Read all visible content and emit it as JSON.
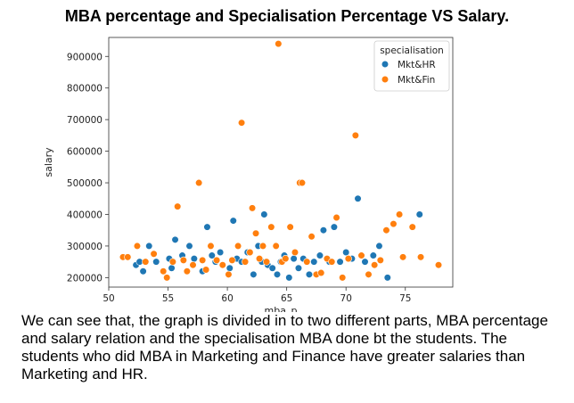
{
  "title": "MBA percentage and Specialisation Percentage VS Salary.",
  "caption": "We can see that, the graph is divided in to two different parts, MBA percentage and salary relation and the specialisation MBA done bt the students. The students who did MBA in Marketing and Finance have greater salaries than Marketing and HR.",
  "chart_data": {
    "type": "scatter",
    "xlabel": "mba_p",
    "ylabel": "salary",
    "xlim": [
      50,
      79
    ],
    "ylim": [
      170000,
      960000
    ],
    "xticks": [
      50,
      55,
      60,
      65,
      70,
      75
    ],
    "yticks": [
      200000,
      300000,
      400000,
      500000,
      600000,
      700000,
      800000,
      900000
    ],
    "grid": false,
    "legend": {
      "title": "specialisation",
      "placement": "top-right"
    },
    "series": [
      {
        "name": "Mkt&HR",
        "color": "#1f77b4",
        "points": [
          [
            52.3,
            240000
          ],
          [
            52.6,
            250000
          ],
          [
            52.9,
            220000
          ],
          [
            53.4,
            300000
          ],
          [
            54.0,
            250000
          ],
          [
            55.1,
            260000
          ],
          [
            55.3,
            230000
          ],
          [
            55.6,
            320000
          ],
          [
            56.2,
            270000
          ],
          [
            56.8,
            300000
          ],
          [
            57.2,
            260000
          ],
          [
            57.9,
            220000
          ],
          [
            58.3,
            360000
          ],
          [
            58.7,
            270000
          ],
          [
            59.0,
            250000
          ],
          [
            59.4,
            280000
          ],
          [
            60.2,
            230000
          ],
          [
            60.5,
            380000
          ],
          [
            60.8,
            260000
          ],
          [
            61.2,
            250000
          ],
          [
            61.7,
            280000
          ],
          [
            62.2,
            210000
          ],
          [
            62.6,
            300000
          ],
          [
            62.9,
            250000
          ],
          [
            63.1,
            400000
          ],
          [
            63.4,
            240000
          ],
          [
            63.8,
            230000
          ],
          [
            64.2,
            210000
          ],
          [
            64.5,
            250000
          ],
          [
            64.8,
            270000
          ],
          [
            65.2,
            200000
          ],
          [
            65.6,
            260000
          ],
          [
            66.0,
            230000
          ],
          [
            66.4,
            260000
          ],
          [
            66.9,
            210000
          ],
          [
            67.3,
            250000
          ],
          [
            67.8,
            270000
          ],
          [
            68.1,
            350000
          ],
          [
            68.6,
            250000
          ],
          [
            69.0,
            360000
          ],
          [
            69.5,
            250000
          ],
          [
            70.0,
            280000
          ],
          [
            70.5,
            260000
          ],
          [
            71.0,
            450000
          ],
          [
            71.6,
            250000
          ],
          [
            72.3,
            270000
          ],
          [
            72.8,
            300000
          ],
          [
            73.5,
            200000
          ],
          [
            76.2,
            400000
          ]
        ]
      },
      {
        "name": "Mkt&Fin",
        "color": "#ff7f0e",
        "points": [
          [
            51.2,
            265000
          ],
          [
            51.6,
            265000
          ],
          [
            52.4,
            300000
          ],
          [
            53.1,
            250000
          ],
          [
            53.8,
            275000
          ],
          [
            54.6,
            220000
          ],
          [
            54.9,
            200000
          ],
          [
            55.4,
            250000
          ],
          [
            55.8,
            425000
          ],
          [
            56.3,
            255000
          ],
          [
            56.6,
            220000
          ],
          [
            57.1,
            240000
          ],
          [
            57.6,
            500000
          ],
          [
            57.9,
            255000
          ],
          [
            58.2,
            225000
          ],
          [
            58.6,
            300000
          ],
          [
            59.1,
            255000
          ],
          [
            59.6,
            240000
          ],
          [
            60.1,
            210000
          ],
          [
            60.4,
            255000
          ],
          [
            60.9,
            300000
          ],
          [
            61.2,
            690000
          ],
          [
            61.5,
            250000
          ],
          [
            61.9,
            280000
          ],
          [
            62.1,
            420000
          ],
          [
            62.4,
            340000
          ],
          [
            62.7,
            260000
          ],
          [
            63.0,
            300000
          ],
          [
            63.3,
            250000
          ],
          [
            63.7,
            360000
          ],
          [
            64.1,
            300000
          ],
          [
            64.3,
            940000
          ],
          [
            64.6,
            250000
          ],
          [
            64.9,
            260000
          ],
          [
            65.3,
            360000
          ],
          [
            65.7,
            280000
          ],
          [
            66.1,
            500000
          ],
          [
            66.3,
            500000
          ],
          [
            66.7,
            250000
          ],
          [
            67.1,
            330000
          ],
          [
            67.5,
            210000
          ],
          [
            67.9,
            215000
          ],
          [
            68.4,
            260000
          ],
          [
            68.8,
            250000
          ],
          [
            69.2,
            390000
          ],
          [
            69.7,
            200000
          ],
          [
            70.2,
            260000
          ],
          [
            70.8,
            650000
          ],
          [
            71.3,
            270000
          ],
          [
            71.9,
            210000
          ],
          [
            72.4,
            240000
          ],
          [
            72.9,
            255000
          ],
          [
            73.4,
            350000
          ],
          [
            74.0,
            370000
          ],
          [
            74.5,
            400000
          ],
          [
            74.8,
            265000
          ],
          [
            75.6,
            360000
          ],
          [
            76.3,
            265000
          ],
          [
            77.8,
            240000
          ]
        ]
      }
    ]
  }
}
